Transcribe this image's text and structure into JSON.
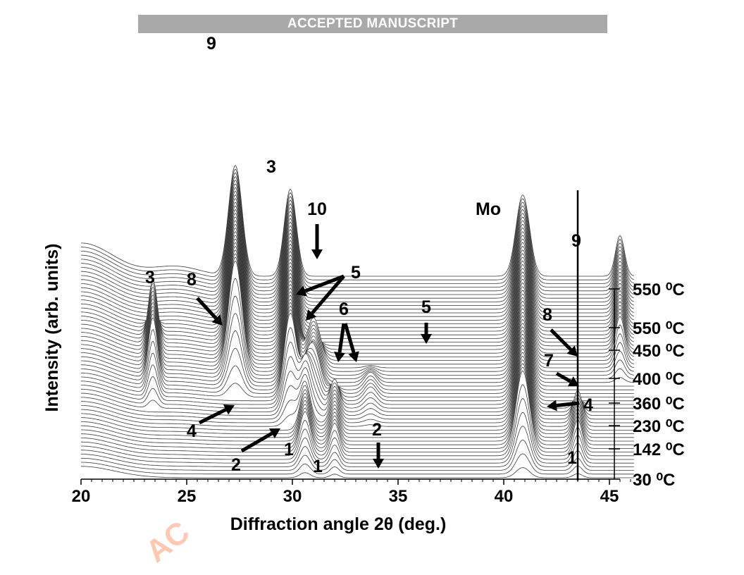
{
  "banner": {
    "text": "ACCEPTED MANUSCRIPT"
  },
  "watermark": {
    "text": "AC"
  },
  "chart_data": {
    "type": "line",
    "title": "",
    "xlabel": "Diffraction angle 2θ (deg.)",
    "ylabel": "Intensity (arb. units)",
    "xlim": [
      20,
      47
    ],
    "xticks": [
      "20",
      "25",
      "30",
      "35",
      "40",
      "45"
    ],
    "temperature_labels": [
      "550 ⁰C",
      "550 ⁰C",
      "450 ⁰C",
      "400 ⁰C",
      "360 ⁰C",
      "230 ⁰C",
      "142 ⁰C",
      "30 ⁰C"
    ],
    "peak_labels": [
      {
        "text": "9",
        "x": 27.2
      },
      {
        "text": "3",
        "x": 29.9
      },
      {
        "text": "10",
        "x": 32.0
      },
      {
        "text": "Mo",
        "x": 40.9
      },
      {
        "text": "9",
        "x": 45.5
      },
      {
        "text": "3",
        "x": 23.3
      },
      {
        "text": "8",
        "x": 25.2
      },
      {
        "text": "5",
        "x": 33.9
      },
      {
        "text": "6",
        "x": 33.6
      },
      {
        "text": "5",
        "x": 37.9
      },
      {
        "text": "8",
        "x": 44.5
      },
      {
        "text": "7",
        "x": 44.5
      },
      {
        "text": "4",
        "x": 46.7
      },
      {
        "text": "4",
        "x": 25.1
      },
      {
        "text": "2",
        "x": 27.8
      },
      {
        "text": "1",
        "x": 30.8
      },
      {
        "text": "1",
        "x": 32.0
      },
      {
        "text": "2",
        "x": 35.0
      },
      {
        "text": "1",
        "x": 45.8
      }
    ],
    "peaks": [
      {
        "phase": "9",
        "position": 27.3,
        "height": 0.95,
        "width": 0.45,
        "first_scan": 22
      },
      {
        "phase": "3",
        "position": 29.9,
        "height": 0.75,
        "width": 0.4,
        "first_scan": 14
      },
      {
        "phase": "3",
        "position": 23.4,
        "height": 0.55,
        "width": 0.3,
        "first_scan": 18,
        "last_scan": 40
      },
      {
        "phase": "Mo",
        "position": 40.9,
        "height": 0.7,
        "width": 0.45,
        "first_scan": 0
      },
      {
        "phase": "9",
        "position": 45.5,
        "height": 0.35,
        "width": 0.3,
        "first_scan": 26
      },
      {
        "phase": "1",
        "position": 30.6,
        "height": 0.35,
        "width": 0.35,
        "first_scan": 0,
        "last_scan": 24
      },
      {
        "phase": "1",
        "position": 32.0,
        "height": 0.25,
        "width": 0.3,
        "first_scan": 0,
        "last_scan": 24
      },
      {
        "phase": "5",
        "position": 31.0,
        "height": 0.4,
        "width": 0.45,
        "first_scan": 16,
        "last_scan": 36
      },
      {
        "phase": "6",
        "position": 33.7,
        "height": 0.12,
        "width": 0.4,
        "first_scan": 14,
        "last_scan": 30
      },
      {
        "phase": "4",
        "position": 43.5,
        "height": 0.28,
        "width": 0.3,
        "first_scan": 0,
        "last_scan": 20
      }
    ],
    "scan_count": 56,
    "vertical_marker_x": 43.5,
    "grid": false,
    "legend": "none"
  }
}
